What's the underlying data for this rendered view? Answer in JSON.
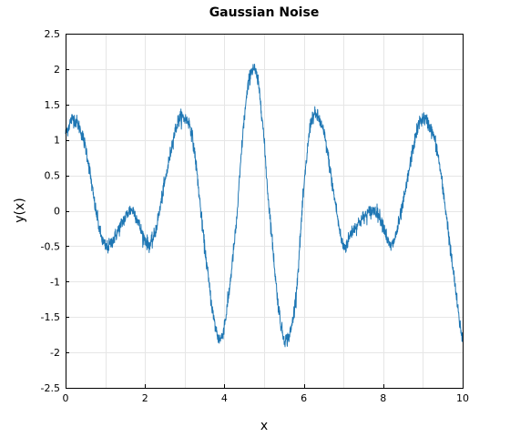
{
  "chart_data": {
    "type": "line",
    "title": "Gaussian Noise",
    "xlabel": "x",
    "ylabel": "y(x)",
    "xlim": [
      0,
      10
    ],
    "ylim": [
      -2.5,
      2.5
    ],
    "x_ticks": [
      0,
      2,
      4,
      6,
      8,
      10
    ],
    "x_tick_labels": [
      "0",
      "2",
      "4",
      "6",
      "8",
      "10"
    ],
    "y_ticks": [
      2.5,
      2,
      1.5,
      1,
      0.5,
      0,
      -0.5,
      -1,
      -1.5,
      -2,
      -2.5
    ],
    "y_tick_labels": [
      "2.5",
      "2",
      "1.5",
      "1",
      "0.5",
      "0",
      "-0.5",
      "-1",
      "-1.5",
      "-2",
      "-2.5"
    ],
    "grid": true,
    "series_color": "#1f77b4",
    "series": [
      {
        "x": [
          0,
          0.2,
          0.5,
          0.8,
          1.0,
          1.2,
          1.5,
          1.7,
          2.0,
          2.2,
          2.5,
          2.8,
          3.0,
          3.2,
          3.5,
          3.8,
          4.0,
          4.3,
          4.5,
          4.7,
          4.9,
          5.1,
          5.4,
          5.6,
          5.8,
          6.0,
          6.2,
          6.5,
          6.8,
          7.0,
          7.2,
          7.5,
          7.8,
          8.0,
          8.2,
          8.5,
          8.8,
          9.0,
          9.3,
          9.5,
          9.8,
          10.0
        ],
        "values": [
          1.1,
          1.3,
          0.9,
          -0.1,
          -0.5,
          -0.4,
          -0.1,
          0.0,
          -0.4,
          -0.4,
          0.4,
          1.2,
          1.3,
          1.0,
          -0.5,
          -1.7,
          -1.6,
          -0.2,
          1.3,
          2.0,
          1.6,
          0.2,
          -1.5,
          -1.8,
          -1.2,
          0.3,
          1.3,
          1.1,
          0.1,
          -0.5,
          -0.3,
          -0.1,
          0.0,
          -0.2,
          -0.5,
          0.1,
          1.0,
          1.3,
          1.0,
          0.3,
          -1.0,
          -1.8
        ]
      }
    ]
  }
}
